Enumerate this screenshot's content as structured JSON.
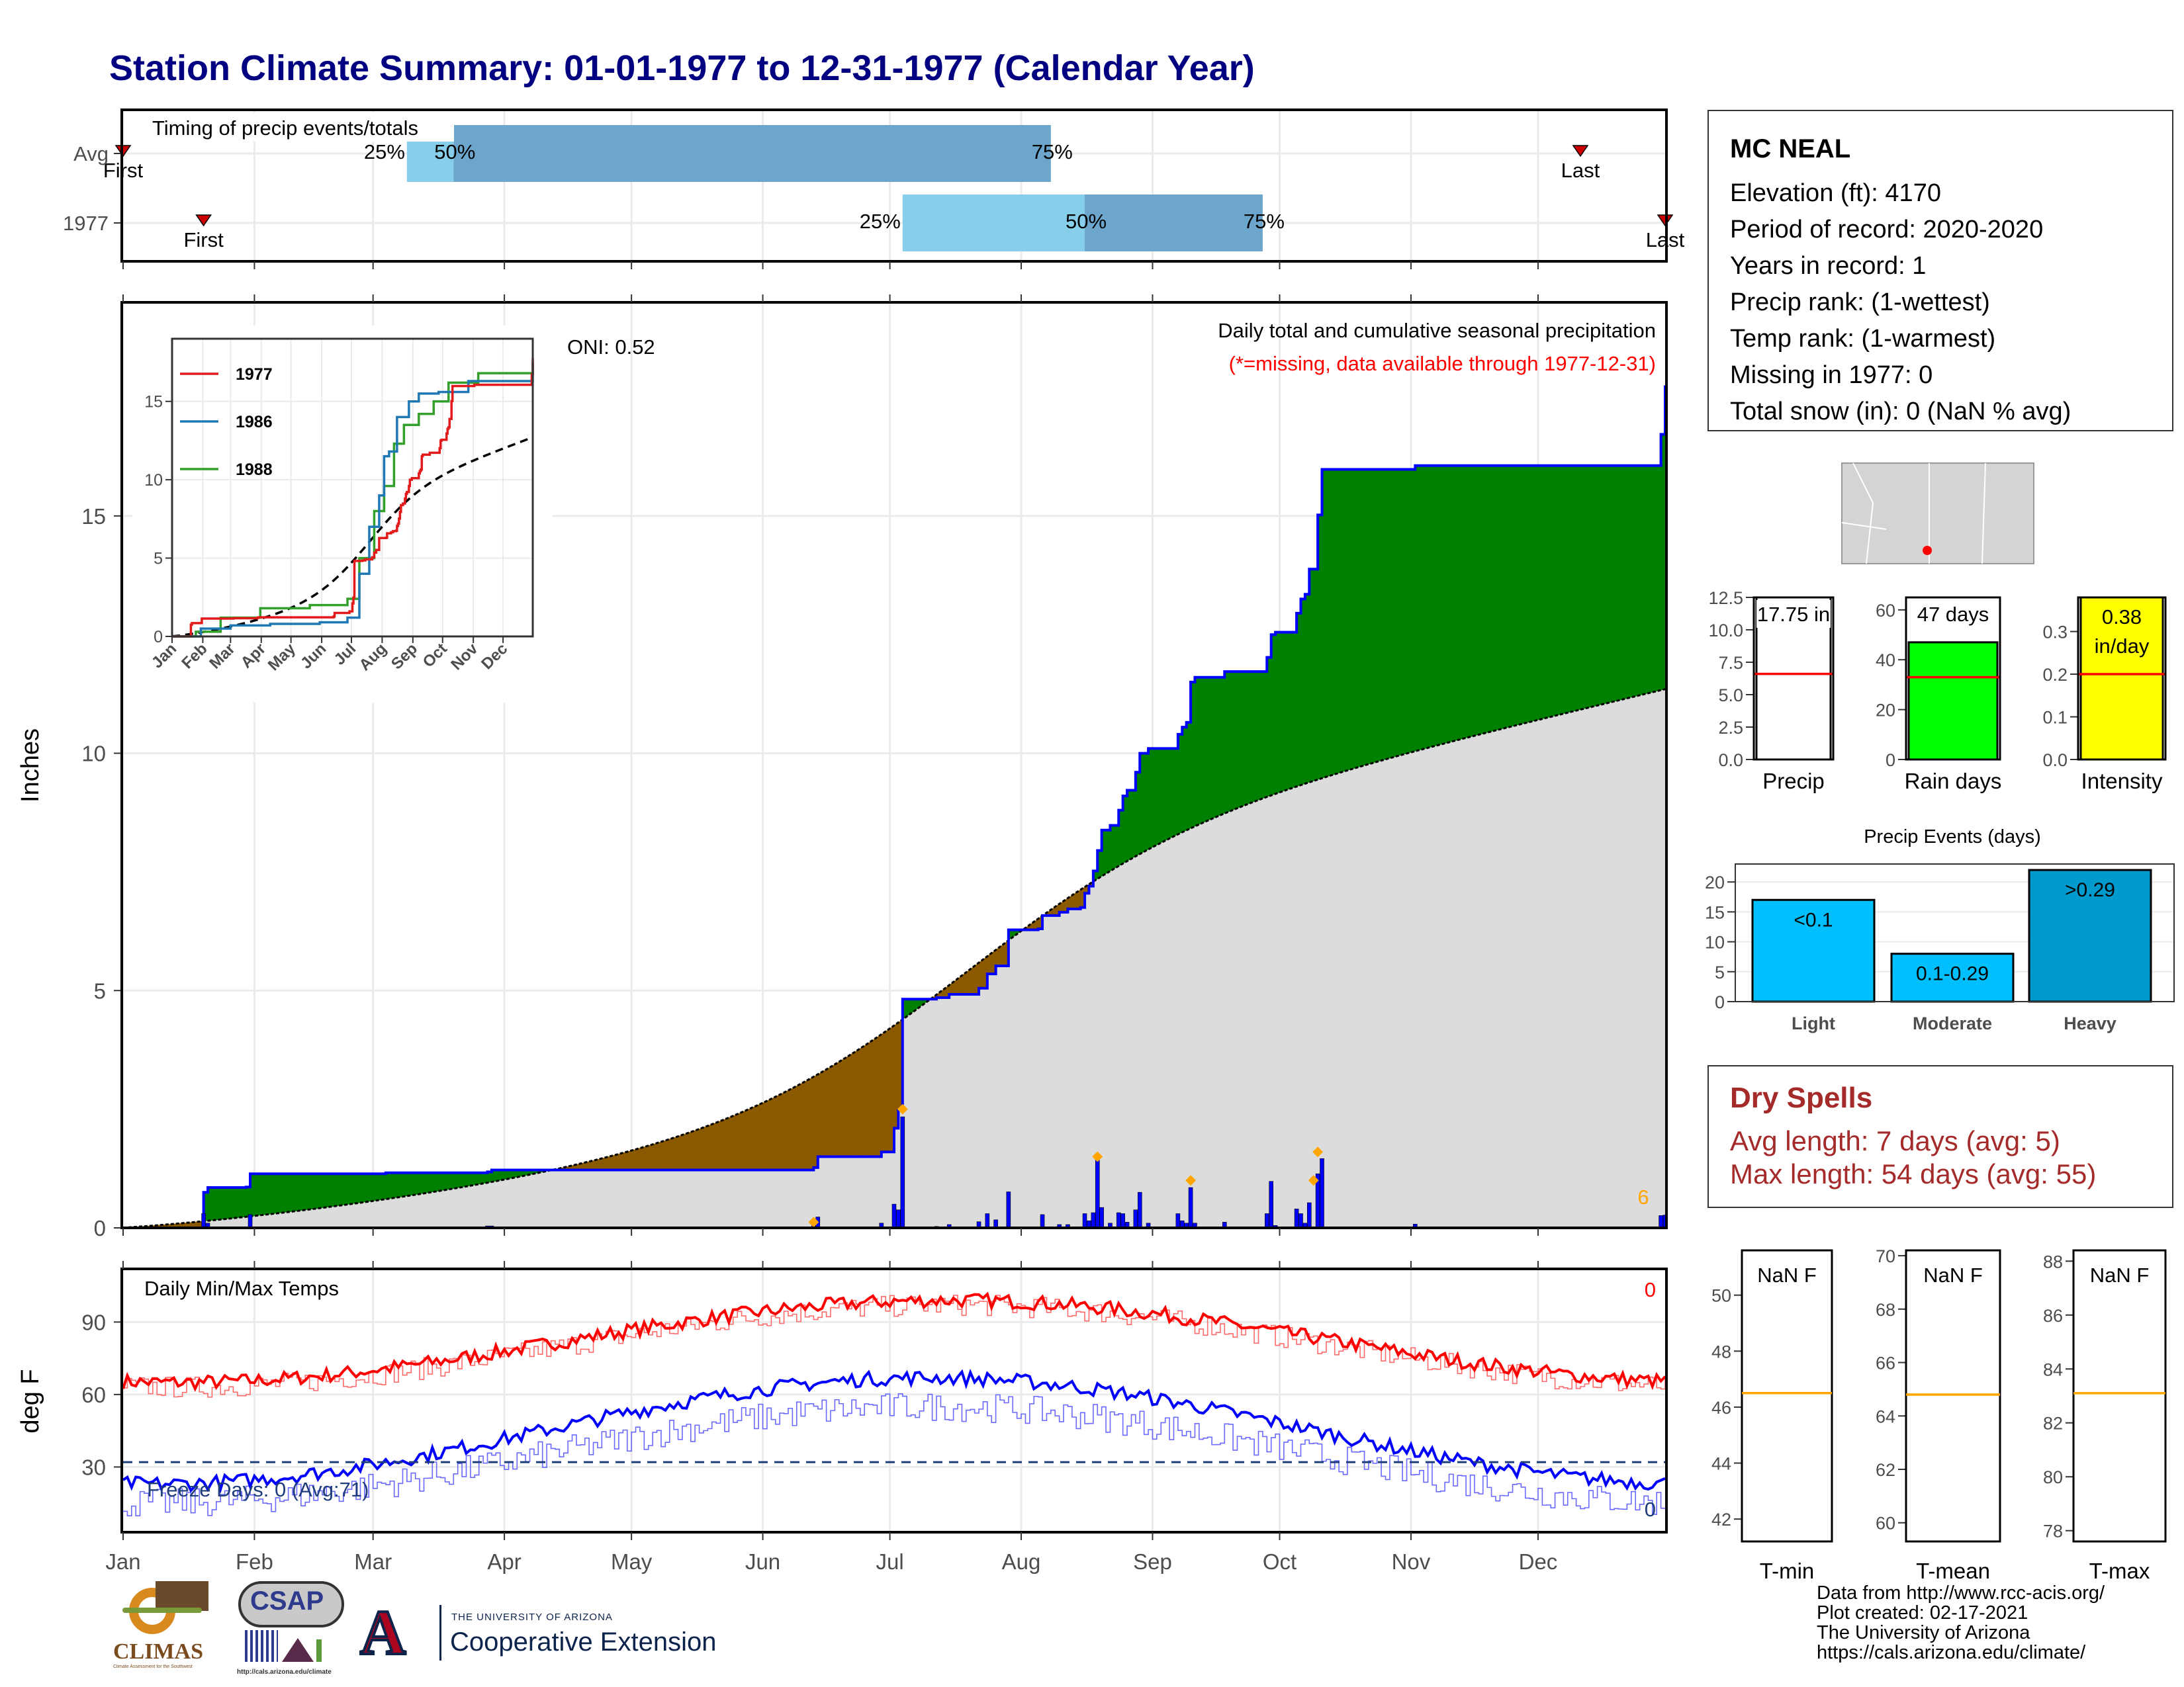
{
  "title": "Station Climate Summary: 01-01-1977 to 12-31-1977 (Calendar Year)",
  "months": [
    "Jan",
    "Feb",
    "Mar",
    "Apr",
    "May",
    "Jun",
    "Jul",
    "Aug",
    "Sep",
    "Oct",
    "Nov",
    "Dec"
  ],
  "colors": {
    "title": "#000080",
    "bar_light": "#87CEEB",
    "bar_mid": "#6CA6CD",
    "green": "#008000",
    "brown": "#8B5A00",
    "gray_fill": "#DCDCDC",
    "blue": "#0000FF",
    "red": "#FF0000",
    "orange": "#FFA500",
    "yellow": "#FFFF00",
    "lime": "#00FF00",
    "cyan": "#00BFFF",
    "deep_cyan": "#009ACD",
    "dark_red": "#A52A2A"
  },
  "timing": {
    "title": "Timing of precip events/totals",
    "rows": [
      {
        "label": "Avg",
        "first_label": "First",
        "last_label": "Last",
        "first_day": 1,
        "last_day": 345,
        "q25_day": 68,
        "q50_day": 79,
        "q75_day": 220,
        "q25_label": "25%",
        "q50_label": "50%",
        "q75_label": "75%"
      },
      {
        "label": "1977",
        "first_label": "First",
        "last_label": "Last",
        "first_day": 20,
        "last_day": 365,
        "q25_day": 185,
        "q50_day": 228,
        "q75_day": 270,
        "q25_label": "25%",
        "q50_label": "50%",
        "q75_label": "75%"
      }
    ]
  },
  "precip": {
    "ylabel": "Inches",
    "yticks": [
      0,
      5,
      10,
      15
    ],
    "title_line1": "Daily total and cumulative seasonal precipitation",
    "title_line2": "(*=missing, data available through 1977-12-31)",
    "oni": "ONI: 0.52",
    "corner_label": "6",
    "ylim": [
      0,
      19.5
    ],
    "cumulative": [
      [
        1,
        0
      ],
      [
        20,
        0.75
      ],
      [
        21,
        0.85
      ],
      [
        30,
        0.86
      ],
      [
        31,
        1.14
      ],
      [
        63,
        1.16
      ],
      [
        87,
        1.18
      ],
      [
        88,
        1.22
      ],
      [
        164,
        1.27
      ],
      [
        165,
        1.5
      ],
      [
        180,
        1.6
      ],
      [
        183,
        2.1
      ],
      [
        184,
        2.48
      ],
      [
        185,
        4.82
      ],
      [
        193,
        4.85
      ],
      [
        196,
        4.92
      ],
      [
        203,
        5.05
      ],
      [
        205,
        5.35
      ],
      [
        207,
        5.52
      ],
      [
        210,
        6.28
      ],
      [
        217,
        6.3
      ],
      [
        218,
        6.58
      ],
      [
        222,
        6.65
      ],
      [
        224,
        6.72
      ],
      [
        227,
        6.75
      ],
      [
        228,
        7.05
      ],
      [
        229,
        7.2
      ],
      [
        230,
        7.52
      ],
      [
        231,
        7.95
      ],
      [
        232,
        8.38
      ],
      [
        234,
        8.48
      ],
      [
        236,
        8.8
      ],
      [
        237,
        9.1
      ],
      [
        238,
        9.22
      ],
      [
        240,
        9.6
      ],
      [
        241,
        10.0
      ],
      [
        243,
        10.1
      ],
      [
        250,
        10.4
      ],
      [
        251,
        10.55
      ],
      [
        252,
        10.65
      ],
      [
        253,
        11.5
      ],
      [
        254,
        11.6
      ],
      [
        261,
        11.72
      ],
      [
        271,
        12.02
      ],
      [
        272,
        12.5
      ],
      [
        273,
        12.55
      ],
      [
        278,
        12.95
      ],
      [
        279,
        13.25
      ],
      [
        280,
        13.35
      ],
      [
        281,
        13.88
      ],
      [
        283,
        15.02
      ],
      [
        284,
        15.98
      ],
      [
        306,
        16.06
      ],
      [
        364,
        16.72
      ],
      [
        365,
        17.75
      ]
    ],
    "daily": [
      [
        20,
        0.3
      ],
      [
        21,
        0.1
      ],
      [
        31,
        0.28
      ],
      [
        63,
        0.02
      ],
      [
        87,
        0.04
      ],
      [
        88,
        0.04
      ],
      [
        164,
        0.05
      ],
      [
        165,
        0.23
      ],
      [
        180,
        0.1
      ],
      [
        183,
        0.5
      ],
      [
        184,
        0.38
      ],
      [
        185,
        2.34
      ],
      [
        193,
        0.03
      ],
      [
        196,
        0.07
      ],
      [
        203,
        0.13
      ],
      [
        205,
        0.3
      ],
      [
        207,
        0.17
      ],
      [
        210,
        0.76
      ],
      [
        218,
        0.28
      ],
      [
        222,
        0.07
      ],
      [
        224,
        0.07
      ],
      [
        228,
        0.3
      ],
      [
        229,
        0.15
      ],
      [
        230,
        0.32
      ],
      [
        231,
        1.43
      ],
      [
        232,
        0.43
      ],
      [
        234,
        0.1
      ],
      [
        236,
        0.32
      ],
      [
        237,
        0.3
      ],
      [
        238,
        0.12
      ],
      [
        240,
        0.38
      ],
      [
        241,
        0.75
      ],
      [
        243,
        0.1
      ],
      [
        250,
        0.3
      ],
      [
        251,
        0.15
      ],
      [
        252,
        0.1
      ],
      [
        253,
        0.85
      ],
      [
        254,
        0.1
      ],
      [
        261,
        0.12
      ],
      [
        271,
        0.3
      ],
      [
        272,
        0.98
      ],
      [
        273,
        0.05
      ],
      [
        278,
        0.4
      ],
      [
        279,
        0.3
      ],
      [
        280,
        0.1
      ],
      [
        281,
        0.53
      ],
      [
        283,
        1.14
      ],
      [
        284,
        1.46
      ],
      [
        306,
        0.08
      ],
      [
        364,
        0.26
      ],
      [
        365,
        0.27
      ]
    ],
    "missing_markers": [
      [
        164,
        0.12
      ],
      [
        185,
        2.5
      ],
      [
        231,
        1.5
      ],
      [
        253,
        1.0
      ],
      [
        282,
        1.0
      ],
      [
        283,
        1.6
      ]
    ]
  },
  "inset": {
    "years": [
      "1977",
      "1986",
      "1988"
    ],
    "yticks": [
      0,
      5,
      10,
      15
    ],
    "months": [
      "Jan",
      "Feb",
      "Mar",
      "Apr",
      "May",
      "Jun",
      "Jul",
      "Aug",
      "Sep",
      "Oct",
      "Nov",
      "Dec"
    ]
  },
  "station": {
    "name": "MC NEAL",
    "lines": [
      "Elevation (ft): 4170",
      "Period of record: 2020-2020",
      "Years in record: 1",
      "Precip rank:  (1-wettest)",
      "Temp rank:  (1-warmest)",
      "Missing in 1977: 0",
      "Total snow (in): 0 (NaN % avg)"
    ]
  },
  "summary_bars": [
    {
      "label": "Precip",
      "value_text": "17.75 in",
      "value": 17.75,
      "avg": 6.6,
      "ymax": 12.5,
      "yticks": [
        "0.0",
        "2.5",
        "5.0",
        "7.5",
        "10.0",
        "12.5"
      ],
      "tick_vals": [
        0,
        2.5,
        5,
        7.5,
        10,
        12.5
      ],
      "color": "#FFFFFF"
    },
    {
      "label": "Rain days",
      "value_text": "47 days",
      "value": 47,
      "avg": 33,
      "ymax": 65,
      "yticks": [
        "0",
        "20",
        "40",
        "60"
      ],
      "tick_vals": [
        0,
        20,
        40,
        60
      ],
      "color": "#00FF00"
    },
    {
      "label": "Intensity",
      "value_text": "0.38",
      "value_text2": "in/day",
      "value": 0.38,
      "avg": 0.2,
      "ymax": 0.38,
      "yticks": [
        "0.0",
        "0.1",
        "0.2",
        "0.3"
      ],
      "tick_vals": [
        0,
        0.1,
        0.2,
        0.3
      ],
      "color": "#FFFF00"
    }
  ],
  "events": {
    "title": "Precip Events (days)",
    "yticks": [
      0,
      5,
      10,
      15,
      20
    ],
    "ymax": 23,
    "bars": [
      {
        "category": "Light",
        "label": "<0.1",
        "value": 17
      },
      {
        "category": "Moderate",
        "label": "0.1-0.29",
        "value": 8
      },
      {
        "category": "Heavy",
        "label": ">0.29",
        "value": 22
      }
    ]
  },
  "dry_spells": {
    "title": "Dry Spells",
    "avg_line": "Avg length: 7 days (avg: 5)",
    "max_line": "Max length: 54 days (avg: 55)"
  },
  "temps": {
    "title": "Daily Min/Max Temps",
    "ylabel": "deg F",
    "yticks": [
      30,
      60,
      90
    ],
    "ylim": [
      3,
      112
    ],
    "max_count": "0",
    "min_count": "0",
    "freeze_label": "Freeze Days: 0 (Avg:71)",
    "freeze_line": 32
  },
  "temp_boxes": [
    {
      "label": "T-min",
      "value_text": "NaN F",
      "avg": 46.5,
      "ymin": 41.2,
      "ymax": 51.6,
      "yticks": [
        42,
        44,
        46,
        48,
        50
      ]
    },
    {
      "label": "T-mean",
      "value_text": "NaN F",
      "avg": 64.8,
      "ymin": 59.3,
      "ymax": 70.2,
      "yticks": [
        60,
        62,
        64,
        66,
        68,
        70
      ]
    },
    {
      "label": "T-max",
      "value_text": "NaN F",
      "avg": 83.1,
      "ymin": 77.6,
      "ymax": 88.4,
      "yticks": [
        78,
        80,
        82,
        84,
        86,
        88
      ]
    }
  ],
  "credits": [
    "Data from http://www.rcc-acis.org/",
    "Plot created: 02-17-2021",
    "The University of Arizona",
    "https://cals.arizona.edu/climate/"
  ],
  "logos": {
    "climas": "CLIMAS",
    "climas_sub": "Climate Assessment for the Southwest",
    "csap": "CSAP",
    "csap_url": "http://cals.arizona.edu/climate",
    "ua_letter": "A",
    "ua_small": "THE UNIVERSITY OF ARIZONA",
    "ua_large": "Cooperative Extension"
  }
}
